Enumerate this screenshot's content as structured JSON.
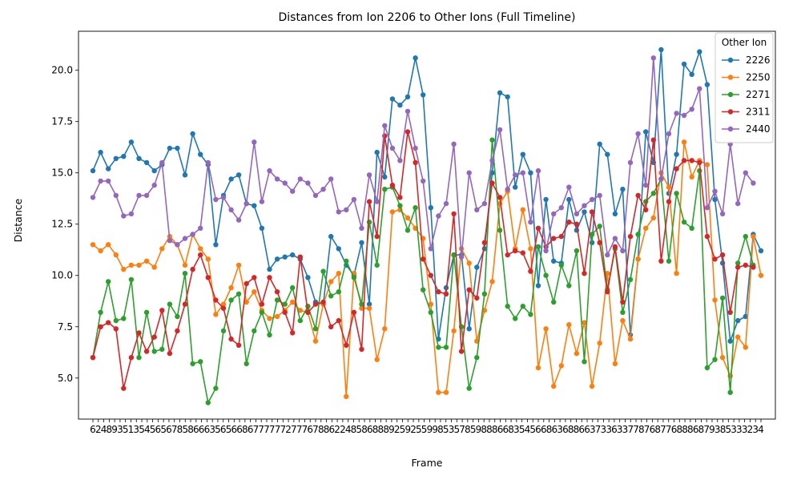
{
  "chart_data": {
    "type": "line",
    "title": "Distances from Ion 2206 to Other Ions (Full Timeline)",
    "xlabel": "Frame",
    "ylabel": "Distance",
    "ylim": [
      3.0,
      21.9
    ],
    "yticks": [
      5.0,
      7.5,
      10.0,
      12.5,
      15.0,
      17.5,
      20.0
    ],
    "x_tick_labels": [
      "6",
      "2",
      "4",
      "8",
      "9",
      "3",
      "5",
      "1",
      "3",
      "5",
      "4",
      "5",
      "6",
      "5",
      "6",
      "7",
      "8",
      "5",
      "8",
      "6",
      "6",
      "6",
      "3",
      "5",
      "6",
      "5",
      "6",
      "6",
      "8",
      "6",
      "7",
      "7",
      "7",
      "7",
      "7",
      "7",
      "2",
      "7",
      "7",
      "7",
      "6",
      "7",
      "8",
      "8",
      "6",
      "2",
      "2",
      "4",
      "8",
      "5",
      "8",
      "6",
      "8",
      "8",
      "8",
      "9",
      "2",
      "5",
      "9",
      "2",
      "5",
      "5",
      "9",
      "9",
      "8",
      "5",
      "3",
      "5",
      "7",
      "8",
      "5",
      "9",
      "8",
      "8",
      "8",
      "6",
      "6",
      "8",
      "3",
      "5",
      "4",
      "5",
      "6",
      "6",
      "8",
      "6",
      "3",
      "6",
      "8",
      "8",
      "6",
      "6",
      "3",
      "7",
      "3",
      "3",
      "6",
      "3",
      "3",
      "7",
      "7",
      "8",
      "7",
      "6",
      "8",
      "7",
      "7",
      "6",
      "8",
      "8",
      "8",
      "6",
      "8",
      "7",
      "9",
      "3",
      "8",
      "5",
      "3",
      "3",
      "3",
      "2",
      "3",
      "4"
    ],
    "legend": {
      "title": "Other Ion",
      "position": "upper right"
    },
    "grid": false,
    "series": [
      {
        "name": "2226",
        "color": "#1f77b4",
        "values": [
          15.1,
          16.0,
          15.2,
          15.7,
          15.8,
          16.5,
          15.7,
          15.5,
          15.1,
          15.4,
          16.2,
          16.2,
          14.9,
          16.9,
          15.9,
          15.4,
          11.5,
          13.9,
          14.7,
          14.9,
          13.5,
          13.4,
          12.3,
          10.3,
          10.8,
          10.9,
          11.0,
          10.8,
          9.9,
          8.7,
          8.6,
          11.9,
          11.3,
          10.5,
          10.0,
          11.6,
          8.6,
          16.0,
          14.8,
          18.6,
          18.3,
          18.7,
          20.6,
          18.8,
          13.3,
          6.9,
          9.4,
          11.0,
          11.0,
          7.4,
          10.4,
          11.3,
          15.0,
          18.9,
          18.7,
          14.3,
          15.9,
          15.0,
          9.5,
          13.7,
          10.7,
          10.6,
          13.7,
          12.2,
          13.1,
          11.6,
          16.4,
          15.9,
          13.0,
          14.2,
          7.1,
          10.8,
          17.0,
          15.5,
          21.0,
          14.0,
          15.9,
          20.3,
          19.8,
          20.9,
          19.3,
          13.7,
          10.6,
          6.8,
          7.8,
          8.0,
          12.0,
          11.2
        ]
      },
      {
        "name": "2250",
        "color": "#ff7f0e",
        "values": [
          11.5,
          11.2,
          11.5,
          11.0,
          10.3,
          10.5,
          10.5,
          10.7,
          10.4,
          11.3,
          11.9,
          11.5,
          10.5,
          12.0,
          11.3,
          10.8,
          8.1,
          8.6,
          9.4,
          10.5,
          8.7,
          9.2,
          8.3,
          7.9,
          8.0,
          8.3,
          8.7,
          8.3,
          8.2,
          6.8,
          8.6,
          9.7,
          10.1,
          4.1,
          10.1,
          8.4,
          8.4,
          5.9,
          7.4,
          13.1,
          13.2,
          12.8,
          12.3,
          11.8,
          8.6,
          4.3,
          4.3,
          7.3,
          11.3,
          10.6,
          6.8,
          8.3,
          9.7,
          13.5,
          14.1,
          11.3,
          13.2,
          11.3,
          5.5,
          7.4,
          4.6,
          5.6,
          7.6,
          6.2,
          7.7,
          4.6,
          6.7,
          10.1,
          5.7,
          7.8,
          6.9,
          10.8,
          12.3,
          12.8,
          15.0,
          14.3,
          10.1,
          16.5,
          14.8,
          15.6,
          15.4,
          8.8,
          6.0,
          5.1,
          7.0,
          6.5,
          11.9,
          10.0
        ]
      },
      {
        "name": "2271",
        "color": "#2ca02c",
        "values": [
          6.0,
          8.2,
          9.7,
          7.8,
          7.9,
          9.8,
          6.0,
          8.2,
          6.3,
          6.4,
          8.6,
          8.0,
          10.1,
          5.7,
          5.8,
          3.8,
          4.5,
          7.3,
          8.8,
          9.1,
          5.7,
          7.3,
          8.2,
          7.1,
          8.8,
          8.6,
          9.4,
          7.8,
          8.5,
          7.4,
          10.2,
          9.0,
          9.2,
          10.7,
          9.9,
          8.6,
          12.6,
          10.5,
          14.2,
          14.3,
          13.4,
          12.2,
          13.3,
          9.3,
          8.2,
          6.5,
          6.5,
          11.0,
          7.5,
          4.5,
          6.0,
          9.1,
          16.6,
          12.2,
          8.5,
          7.9,
          8.5,
          8.1,
          11.4,
          10.0,
          8.7,
          10.5,
          9.5,
          11.2,
          5.8,
          12.0,
          12.4,
          9.3,
          11.3,
          8.2,
          9.8,
          12.0,
          13.6,
          14.0,
          14.7,
          10.7,
          14.0,
          12.6,
          12.3,
          15.1,
          5.5,
          5.9,
          8.9,
          4.3,
          10.6,
          11.9,
          10.5
        ]
      },
      {
        "name": "2311",
        "color": "#d62728",
        "values": [
          6.0,
          7.5,
          7.7,
          7.4,
          4.5,
          6.0,
          7.2,
          6.3,
          7.0,
          8.3,
          6.2,
          7.3,
          8.6,
          10.3,
          11.0,
          9.9,
          8.8,
          8.4,
          6.9,
          6.6,
          9.6,
          9.9,
          8.6,
          9.9,
          9.2,
          8.2,
          7.2,
          10.9,
          8.2,
          8.6,
          8.7,
          7.5,
          7.8,
          6.6,
          8.2,
          6.4,
          13.6,
          11.9,
          16.8,
          14.4,
          13.8,
          17.0,
          15.5,
          10.8,
          10.0,
          9.2,
          9.1,
          13.0,
          6.3,
          9.3,
          8.9,
          11.6,
          14.5,
          13.8,
          11.0,
          11.2,
          11.1,
          10.2,
          12.3,
          11.4,
          11.8,
          11.9,
          12.6,
          12.5,
          10.1,
          13.1,
          11.6,
          9.2,
          11.4,
          8.7,
          11.9,
          13.9,
          13.2,
          16.6,
          10.7,
          13.6,
          15.2,
          15.6,
          15.6,
          15.5,
          11.9,
          10.8,
          11.0,
          8.2,
          10.4,
          10.5,
          10.4
        ]
      },
      {
        "name": "2440",
        "color": "#9467bd",
        "values": [
          13.8,
          14.6,
          14.6,
          13.9,
          12.9,
          13.0,
          13.9,
          13.9,
          14.4,
          15.5,
          11.7,
          11.5,
          11.8,
          12.0,
          12.3,
          15.5,
          13.7,
          13.8,
          13.2,
          12.7,
          13.5,
          16.5,
          13.6,
          15.1,
          14.7,
          14.5,
          14.1,
          14.7,
          14.5,
          13.9,
          14.2,
          14.7,
          13.1,
          13.2,
          13.7,
          12.3,
          14.9,
          13.6,
          17.3,
          16.2,
          15.6,
          18.0,
          16.2,
          14.6,
          11.3,
          12.9,
          13.5,
          16.4,
          10.9,
          15.0,
          13.2,
          13.5,
          15.6,
          17.1,
          14.2,
          14.9,
          15.0,
          12.6,
          15.1,
          11.2,
          13.0,
          13.3,
          14.3,
          13.0,
          13.4,
          13.7,
          13.9,
          11.0,
          11.8,
          11.2,
          15.5,
          16.9,
          14.4,
          20.6,
          14.7,
          16.9,
          17.9,
          17.8,
          18.1,
          19.1,
          13.3,
          14.1,
          13.0,
          16.4,
          13.5,
          15.0,
          14.5
        ]
      }
    ]
  }
}
